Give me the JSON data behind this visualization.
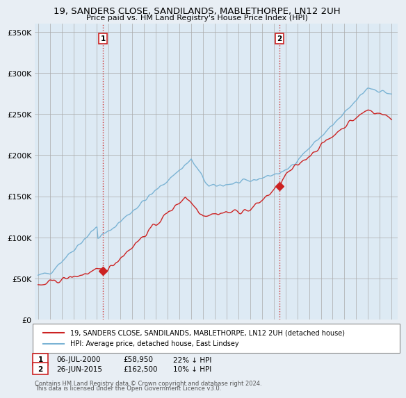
{
  "title": "19, SANDERS CLOSE, SANDILANDS, MABLETHORPE, LN12 2UH",
  "subtitle": "Price paid vs. HM Land Registry's House Price Index (HPI)",
  "ylim": [
    0,
    360000
  ],
  "yticks": [
    0,
    50000,
    100000,
    150000,
    200000,
    250000,
    300000,
    350000
  ],
  "ytick_labels": [
    "£0",
    "£50K",
    "£100K",
    "£150K",
    "£200K",
    "£250K",
    "£300K",
    "£350K"
  ],
  "hpi_color": "#7ab3d4",
  "price_color": "#cc2222",
  "vline_color": "#cc2222",
  "background_color": "#e8eef4",
  "plot_bg_color": "#ddeaf4",
  "sale1_year": 2000.51,
  "sale1_price": 58950,
  "sale1_label": "1",
  "sale2_year": 2015.48,
  "sale2_price": 162500,
  "sale2_label": "2",
  "legend_line1": "19, SANDERS CLOSE, SANDILANDS, MABLETHORPE, LN12 2UH (detached house)",
  "legend_line2": "HPI: Average price, detached house, East Lindsey",
  "annotation1_date": "06-JUL-2000",
  "annotation1_price": "£58,950",
  "annotation1_hpi": "22% ↓ HPI",
  "annotation2_date": "26-JUN-2015",
  "annotation2_price": "£162,500",
  "annotation2_hpi": "10% ↓ HPI",
  "footer1": "Contains HM Land Registry data © Crown copyright and database right 2024.",
  "footer2": "This data is licensed under the Open Government Licence v3.0."
}
